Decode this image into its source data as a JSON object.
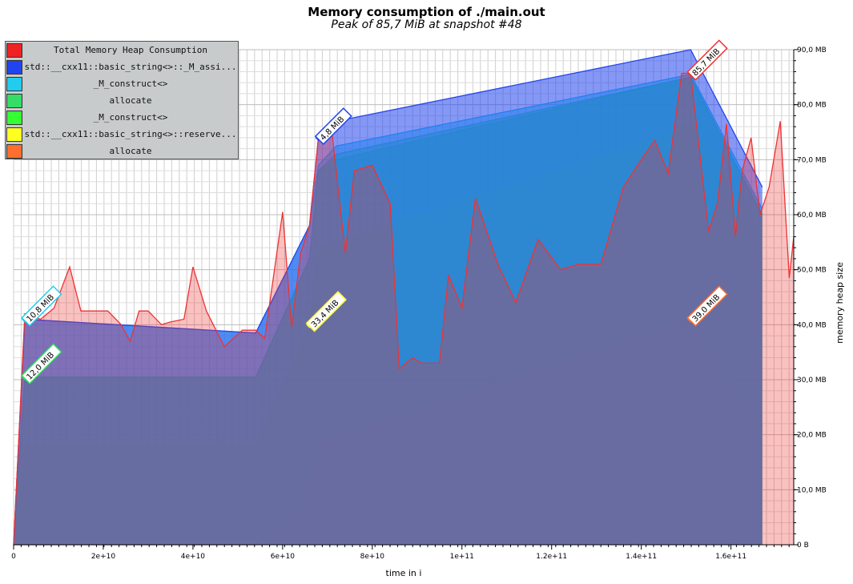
{
  "chart_data": {
    "type": "area",
    "title": "Memory consumption of ./main.out",
    "subtitle": "Peak of 85,7 MiB at snapshot #48",
    "xlabel": "time in i",
    "ylabel": "memory heap size",
    "xlim": [
      0,
      174000000000
    ],
    "ylim": [
      0,
      90
    ],
    "x_tick_values": [
      0,
      20000000000,
      40000000000,
      60000000000,
      80000000000,
      100000000000,
      120000000000,
      140000000000,
      160000000000
    ],
    "x_tick_labels": [
      "0",
      "2e+10",
      "4e+10",
      "6e+10",
      "8e+10",
      "1e+11",
      "1.2e+11",
      "1.4e+11",
      "1.6e+11"
    ],
    "y_tick_values": [
      0,
      10,
      20,
      30,
      40,
      50,
      60,
      70,
      80,
      90
    ],
    "y_tick_labels": [
      "0 B",
      "10,0 MB",
      "20,0 MB",
      "30,0 MB",
      "40,0 MB",
      "50,0 MB",
      "60,0 MB",
      "70,0 MB",
      "80,0 MB",
      "90,0 MB"
    ],
    "grid": true,
    "legend_position": "top-left",
    "series": [
      {
        "name": "allocate",
        "color": "#ff6e2e",
        "x": [
          0,
          54000000000,
          66000000000,
          68000000000,
          72000000000,
          151000000000,
          167000000000
        ],
        "y": [
          0,
          0,
          10,
          19,
          20,
          41,
          21.5
        ],
        "peak_label": "39,0 MiB",
        "peak_index": 5
      },
      {
        "name": "std::__cxx11::basic_string<>::reserve...",
        "color": "#ffff33",
        "x": [
          0,
          2500000000,
          54000000000,
          66000000000,
          68000000000,
          72000000000,
          151000000000,
          167000000000
        ],
        "y": [
          0,
          18,
          18,
          40,
          54,
          55,
          76,
          57
        ],
        "peak_label": "33,4 MiB",
        "peak_index": 3
      },
      {
        "name": "_M_construct<>",
        "color": "#33ff33",
        "x": [
          0,
          2500000000,
          54000000000,
          66000000000,
          68000000000,
          72000000000,
          151000000000,
          167000000000
        ],
        "y": [
          0,
          30.5,
          30.5,
          52,
          68,
          70,
          85,
          60
        ],
        "peak_label": "",
        "peak_index": 6
      },
      {
        "name": "allocate",
        "color": "#33dd66",
        "x": [
          0,
          2500000000,
          54000000000,
          66000000000,
          68000000000,
          72000000000,
          151000000000,
          167000000000
        ],
        "y": [
          0,
          30.5,
          30.5,
          52,
          68,
          71,
          85,
          60
        ],
        "peak_label": "12,0 MiB",
        "peak_index": 1
      },
      {
        "name": "_M_construct<>",
        "color": "#22ccee",
        "x": [
          0,
          2500000000,
          54000000000,
          66000000000,
          68000000000,
          72000000000,
          151000000000,
          167000000000
        ],
        "y": [
          0,
          41,
          38.5,
          58,
          69,
          72.5,
          85.5,
          61
        ],
        "peak_label": "10,8 MiB",
        "peak_index": 1
      },
      {
        "name": "std::__cxx11::basic_string<>::_M_assi...",
        "color": "#2244ee",
        "x": [
          0,
          2500000000,
          54000000000,
          66000000000,
          68000000000,
          72000000000,
          151000000000,
          167000000000
        ],
        "y": [
          0,
          41,
          38.5,
          58,
          74,
          77,
          90,
          65
        ],
        "peak_label": "4,8 MiB",
        "peak_index": 4
      },
      {
        "name": "Total Memory Heap Consumption",
        "color": "#ee3333",
        "x": [
          0,
          2500000000,
          6000000000,
          9000000000,
          12500000000,
          15000000000,
          18000000000,
          21000000000,
          24000000000,
          26000000000,
          28000000000,
          30000000000,
          33000000000,
          35000000000,
          38000000000,
          40000000000,
          43000000000,
          47000000000,
          51000000000,
          54000000000,
          56000000000,
          60000000000,
          62000000000,
          64000000000,
          66000000000,
          68000000000,
          71000000000,
          74000000000,
          76000000000,
          80000000000,
          84000000000,
          86000000000,
          89000000000,
          91000000000,
          95000000000,
          97000000000,
          100000000000,
          103000000000,
          108000000000,
          112000000000,
          117000000000,
          122000000000,
          126000000000,
          131000000000,
          136000000000,
          140000000000,
          143000000000,
          146000000000,
          149000000000,
          151000000000,
          155000000000,
          157000000000,
          159000000000,
          161000000000,
          162500000000,
          164500000000,
          166500000000,
          168500000000,
          171000000000,
          173000000000,
          174000000000
        ],
        "y": [
          0,
          42,
          41,
          43,
          50.5,
          42.5,
          42.5,
          42.5,
          40,
          37,
          42.5,
          42.5,
          40,
          40.5,
          41,
          50.5,
          42.5,
          36,
          39,
          39,
          37.5,
          60.5,
          39.5,
          53,
          58,
          74,
          75,
          53,
          68,
          69,
          62,
          32,
          34,
          33,
          33,
          49,
          43,
          63,
          51,
          44,
          55.5,
          50,
          51,
          51,
          65,
          70,
          73.5,
          67.5,
          85.7,
          85.7,
          57,
          62,
          76.5,
          56,
          68,
          74,
          60,
          65,
          77,
          48.5,
          56
        ],
        "peak_label": "85,7 MiB",
        "peak_index": 49
      }
    ]
  },
  "legend": {
    "items": [
      {
        "label": "Total Memory Heap Consumption",
        "color": "#ee2222"
      },
      {
        "label": "std::__cxx11::basic_string<>::_M_assi...",
        "color": "#2244ee"
      },
      {
        "label": "_M_construct<>",
        "color": "#22ccee"
      },
      {
        "label": "allocate",
        "color": "#33dd66"
      },
      {
        "label": "_M_construct<>",
        "color": "#33ff33"
      },
      {
        "label": "std::__cxx11::basic_string<>::reserve...",
        "color": "#ffff22"
      },
      {
        "label": "allocate",
        "color": "#ff6e2e"
      }
    ]
  }
}
